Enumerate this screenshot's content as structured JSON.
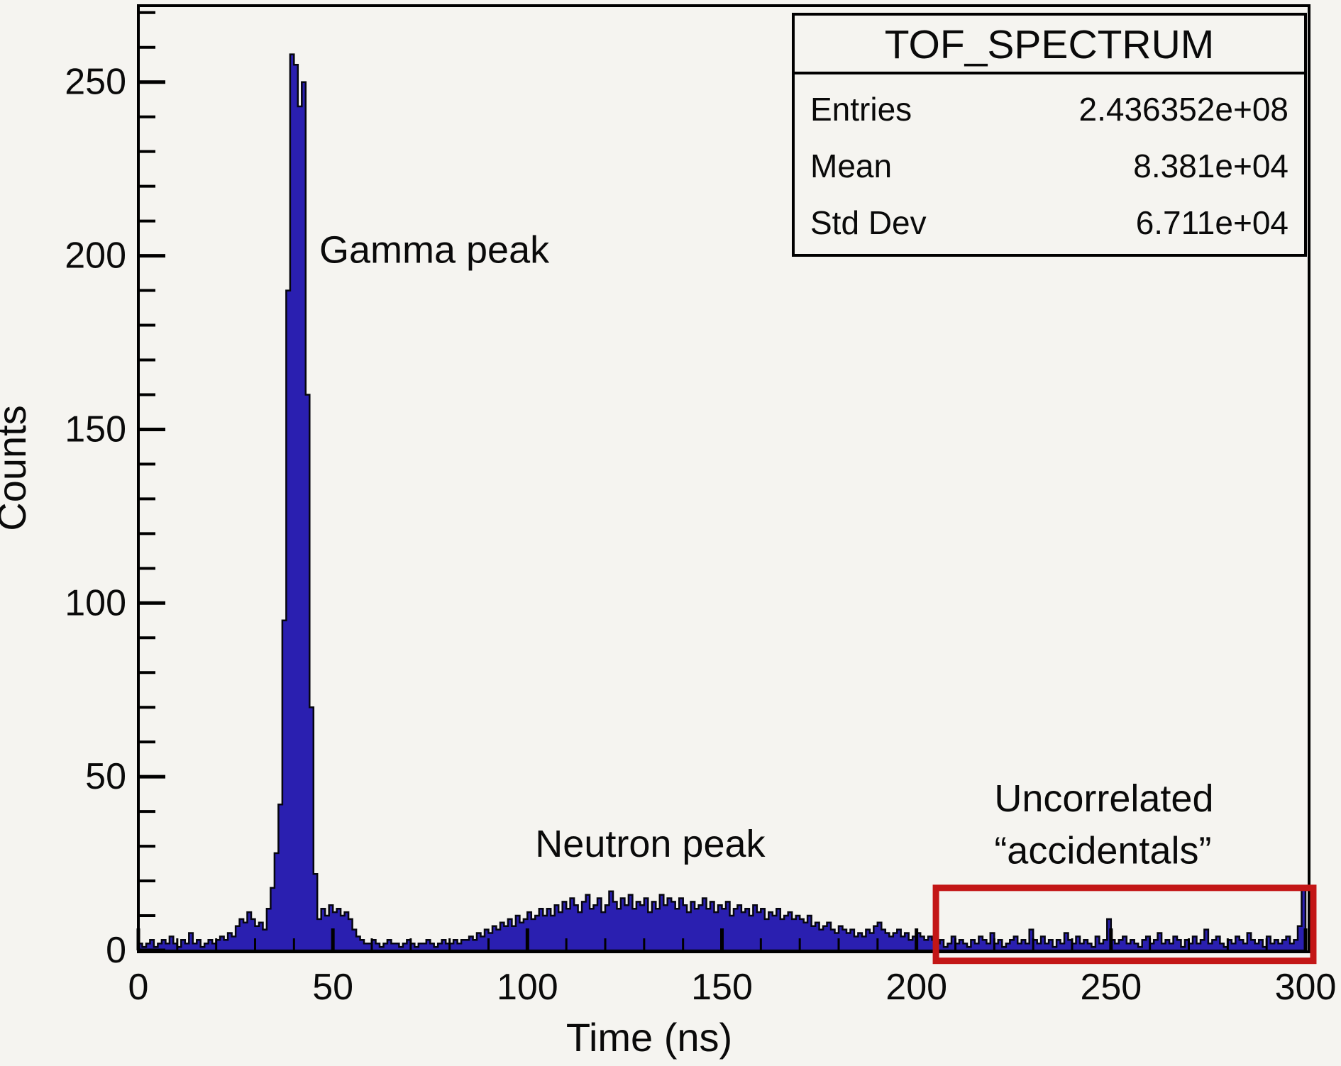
{
  "chart_data": {
    "type": "bar",
    "title": "TOF_SPECTRUM",
    "xlabel": "Time (ns)",
    "ylabel": "Counts",
    "xlim": [
      0,
      300
    ],
    "ylim": [
      0,
      272
    ],
    "x_major_ticks": [
      0,
      50,
      100,
      150,
      200,
      250,
      300
    ],
    "x_minor_step": 10,
    "y_major_ticks": [
      0,
      50,
      100,
      150,
      200,
      250
    ],
    "y_minor_step": 10,
    "grid": false,
    "legend_position": "none",
    "bin_width_ns": 1,
    "bins_start_ns": 0,
    "counts": [
      2,
      1,
      2,
      3,
      1,
      2,
      3,
      2,
      4,
      2,
      1,
      3,
      2,
      5,
      2,
      3,
      1,
      2,
      3,
      2,
      3,
      4,
      3,
      5,
      4,
      7,
      9,
      8,
      11,
      9,
      7,
      8,
      6,
      12,
      18,
      28,
      42,
      95,
      190,
      258,
      255,
      243,
      250,
      160,
      70,
      22,
      9,
      12,
      10,
      13,
      11,
      12,
      10,
      11,
      9,
      6,
      4,
      3,
      2,
      2,
      3,
      2,
      1,
      2,
      3,
      2,
      2,
      1,
      2,
      3,
      2,
      1,
      2,
      2,
      3,
      2,
      1,
      2,
      3,
      2,
      2,
      3,
      2,
      3,
      3,
      4,
      3,
      5,
      4,
      6,
      5,
      7,
      6,
      8,
      7,
      9,
      7,
      10,
      8,
      9,
      11,
      9,
      10,
      12,
      10,
      12,
      10,
      13,
      11,
      14,
      12,
      15,
      13,
      11,
      14,
      16,
      12,
      13,
      15,
      11,
      13,
      17,
      14,
      12,
      15,
      13,
      16,
      12,
      14,
      13,
      15,
      11,
      14,
      12,
      16,
      13,
      15,
      14,
      12,
      15,
      13,
      11,
      14,
      12,
      13,
      15,
      12,
      14,
      11,
      13,
      12,
      14,
      10,
      12,
      13,
      11,
      12,
      10,
      13,
      11,
      12,
      9,
      11,
      10,
      12,
      9,
      10,
      11,
      9,
      10,
      9,
      8,
      10,
      7,
      8,
      6,
      7,
      8,
      6,
      5,
      7,
      6,
      5,
      6,
      4,
      5,
      4,
      6,
      5,
      7,
      8,
      6,
      5,
      4,
      5,
      6,
      4,
      5,
      3,
      4,
      5,
      4,
      3,
      4,
      3,
      2,
      3,
      1,
      2,
      4,
      2,
      3,
      2,
      1,
      3,
      2,
      4,
      3,
      2,
      5,
      2,
      3,
      1,
      2,
      3,
      4,
      2,
      3,
      2,
      6,
      3,
      2,
      4,
      2,
      3,
      1,
      3,
      2,
      5,
      3,
      2,
      4,
      2,
      3,
      2,
      1,
      4,
      2,
      3,
      9,
      3,
      2,
      3,
      4,
      2,
      3,
      2,
      1,
      3,
      4,
      2,
      3,
      5,
      2,
      3,
      2,
      4,
      3,
      1,
      3,
      2,
      4,
      2,
      3,
      6,
      2,
      3,
      4,
      2,
      1,
      3,
      2,
      4,
      3,
      2,
      5,
      3,
      2,
      3,
      1,
      4,
      2,
      3,
      2,
      3,
      4,
      2,
      3,
      7,
      18
    ],
    "highlight_box": {
      "x0_ns": 205,
      "x1_ns": 302,
      "y0_counts": -3,
      "y1_counts": 18,
      "meaning": "accidentals-region"
    },
    "annotations": [
      {
        "text": "Gamma peak",
        "x_ns": 46.5,
        "y_counts": 198,
        "align": "start"
      },
      {
        "text": "Neutron peak",
        "x_ns": 102,
        "y_counts": 27,
        "align": "start"
      },
      {
        "text": "Uncorrelated",
        "x_ns": 220,
        "y_counts": 40,
        "align": "start"
      },
      {
        "text": "“accidentals”",
        "x_ns": 220,
        "y_counts": 25,
        "align": "start"
      }
    ]
  },
  "stats_box": {
    "title": "TOF_SPECTRUM",
    "rows": [
      {
        "label": "Entries",
        "value": "2.436352e+08"
      },
      {
        "label": "Mean",
        "value": "8.381e+04"
      },
      {
        "label": "Std Dev",
        "value": "6.711e+04"
      }
    ]
  },
  "colors": {
    "background": "#f5f4f0",
    "histogram_fill": "#2a1fb0",
    "histogram_line": "#06060f",
    "frame": "#000000",
    "highlight_box": "#c31616",
    "text": "#0a0a0a"
  }
}
